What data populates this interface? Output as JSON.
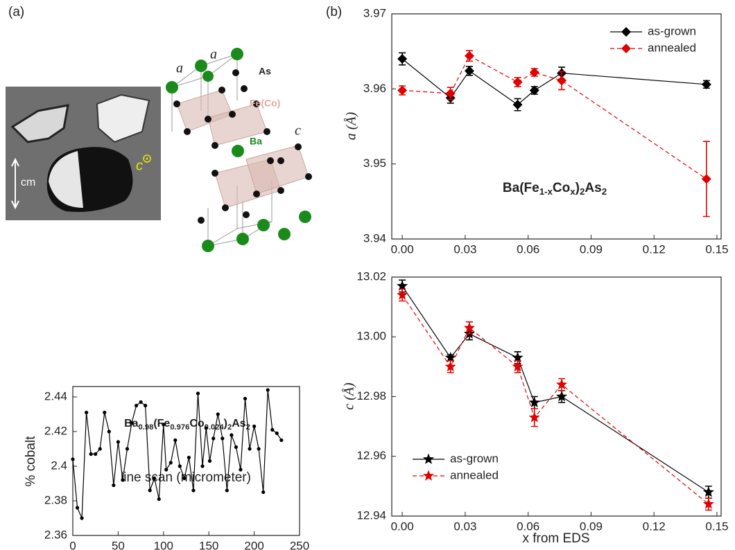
{
  "figure": {
    "panel_labels": [
      "(a)",
      "(b)"
    ],
    "photo_labels": [
      "cm",
      "c"
    ],
    "structure_labels": [
      "a",
      "a",
      "As",
      "Fe(Co)",
      "c",
      "Ba"
    ]
  },
  "chart_data": [
    {
      "type": "line",
      "x_label": "line scan (micrometer)",
      "y_label": "% cobalt",
      "annotation": [
        "Ba",
        "0.98",
        "(Fe",
        "0.976",
        "Co",
        "0.024",
        ")",
        "2",
        "As",
        "2"
      ],
      "x": [
        0,
        5,
        10,
        15,
        20,
        25,
        30,
        35,
        40,
        45,
        50,
        55,
        60,
        65,
        70,
        75,
        80,
        85,
        90,
        95,
        100,
        103,
        108,
        113,
        118,
        123,
        128,
        133,
        138,
        143,
        147,
        151,
        155,
        160,
        165,
        170,
        175,
        180,
        185,
        190,
        195,
        200,
        205,
        210,
        215,
        220,
        225,
        230
      ],
      "values": [
        2.404,
        2.376,
        2.37,
        2.431,
        2.407,
        2.407,
        2.41,
        2.431,
        2.42,
        2.389,
        2.414,
        2.392,
        2.41,
        2.425,
        2.435,
        2.437,
        2.435,
        2.386,
        2.393,
        2.381,
        2.424,
        2.398,
        2.402,
        2.415,
        2.4,
        2.393,
        2.405,
        2.386,
        2.442,
        2.4,
        2.422,
        2.403,
        2.416,
        2.43,
        2.416,
        2.386,
        2.418,
        2.411,
        2.398,
        2.439,
        2.41,
        2.423,
        2.41,
        2.385,
        2.444,
        2.421,
        2.419,
        2.415
      ],
      "color": "#000000",
      "xlim": [
        0,
        250
      ],
      "xticks": [
        0,
        50,
        100,
        150,
        200,
        250
      ],
      "ylim": [
        2.36,
        2.446
      ],
      "yticks": [
        2.36,
        2.38,
        2.4,
        2.42,
        2.44
      ]
    },
    {
      "type": "line",
      "y_label": "a (Å)",
      "annotation": [
        "Ba(Fe",
        "1-x",
        "Co",
        "x",
        ")",
        "2",
        "As",
        "2"
      ],
      "x": [
        0,
        0.023,
        0.032,
        0.055,
        0.063,
        0.076,
        0.145
      ],
      "series": [
        {
          "name": "as-grown",
          "color": "#000000",
          "marker": "diamond",
          "linestyle": "solid",
          "values": [
            3.964,
            3.9588,
            3.9624,
            3.9579,
            3.9598,
            3.9621,
            3.9606
          ],
          "errors": [
            0.0008,
            0.0007,
            0.0006,
            0.0008,
            0.0005,
            0.0008,
            0.0005
          ]
        },
        {
          "name": "annealed",
          "color": "#e00000",
          "marker": "diamond",
          "linestyle": "dashed",
          "values": [
            3.9598,
            3.9594,
            3.9644,
            3.9609,
            3.9622,
            3.9611,
            3.948
          ],
          "errors": [
            0.0006,
            0.0008,
            0.0007,
            0.0006,
            0.0005,
            0.0012,
            0.005
          ]
        }
      ],
      "legend": "upper right",
      "xlim": [
        -0.005,
        0.152
      ],
      "xticks": [
        {
          "value": 0,
          "label": "0.00"
        },
        0.03,
        0.06,
        0.09,
        0.12,
        0.15
      ],
      "ylim": [
        3.94,
        3.97
      ],
      "yticks": [
        3.94,
        3.95,
        3.96,
        3.97
      ]
    },
    {
      "type": "line",
      "x_label": "x from EDS",
      "y_label": "c (Å)",
      "x": [
        0,
        0.023,
        0.032,
        0.055,
        0.063,
        0.076,
        0.146
      ],
      "series": [
        {
          "name": "as-grown",
          "color": "#000000",
          "marker": "star",
          "linestyle": "solid",
          "values": [
            13.017,
            12.993,
            13.001,
            12.993,
            12.978,
            12.98,
            12.948
          ],
          "errors": [
            0.002,
            0.001,
            0.002,
            0.002,
            0.002,
            0.002,
            0.002
          ]
        },
        {
          "name": "annealed",
          "color": "#e00000",
          "marker": "star",
          "linestyle": "dashed",
          "values": [
            13.014,
            12.99,
            13.003,
            12.99,
            12.973,
            12.984,
            12.944
          ],
          "errors": [
            0.002,
            0.002,
            0.002,
            0.002,
            0.003,
            0.002,
            0.002
          ]
        }
      ],
      "legend": "lower left",
      "xlim": [
        -0.005,
        0.152
      ],
      "xticks": [
        {
          "value": 0,
          "label": "0.00"
        },
        0.03,
        0.06,
        0.09,
        0.12,
        0.15
      ],
      "ylim": [
        12.94,
        13.02
      ],
      "yticks": [
        12.94,
        12.96,
        12.98,
        {
          "value": 13.0,
          "label": "13.00"
        },
        13.02
      ]
    }
  ]
}
